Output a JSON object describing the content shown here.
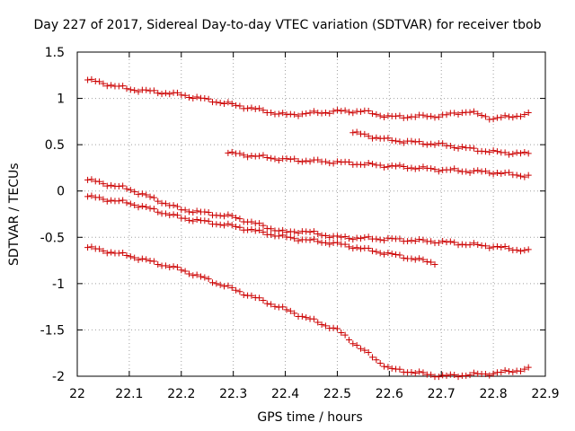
{
  "chart_data": {
    "type": "scatter",
    "title": "Day 227 of 2017, Sidereal Day-to-day VTEC variation (SDTVAR) for receiver tbob",
    "xlabel": "GPS time / hours",
    "ylabel": "SDTVAR / TECUs",
    "xlim": [
      22,
      22.9
    ],
    "ylim": [
      -2,
      1.5
    ],
    "x_ticks": [
      "22",
      "22.1",
      "22.2",
      "22.3",
      "22.4",
      "22.5",
      "22.6",
      "22.7",
      "22.8",
      "22.9"
    ],
    "y_ticks": [
      "1.5",
      "1",
      "0.5",
      "0",
      "-0.5",
      "-1",
      "-1.5",
      "-2"
    ],
    "grid": true,
    "marker": "+",
    "color": "#cc0000",
    "series": [
      {
        "name": "trace-1",
        "x": [
          22.02,
          22.1,
          22.2,
          22.3,
          22.4,
          22.5,
          22.55,
          22.6,
          22.7,
          22.75,
          22.8,
          22.87
        ],
        "y": [
          1.2,
          1.1,
          1.04,
          0.93,
          0.82,
          0.86,
          0.86,
          0.8,
          0.81,
          0.86,
          0.78,
          0.83
        ]
      },
      {
        "name": "trace-2",
        "x": [
          22.53,
          22.6,
          22.7,
          22.8,
          22.87
        ],
        "y": [
          0.63,
          0.55,
          0.5,
          0.42,
          0.4
        ]
      },
      {
        "name": "trace-3",
        "x": [
          22.29,
          22.4,
          22.5,
          22.6,
          22.7,
          22.8,
          22.87
        ],
        "y": [
          0.41,
          0.34,
          0.31,
          0.27,
          0.23,
          0.2,
          0.16
        ]
      },
      {
        "name": "trace-4",
        "x": [
          22.02,
          22.1,
          22.2,
          22.3,
          22.4,
          22.43,
          22.5,
          22.6,
          22.7,
          22.8,
          22.87
        ],
        "y": [
          0.12,
          0.02,
          -0.2,
          -0.28,
          -0.45,
          -0.43,
          -0.5,
          -0.52,
          -0.55,
          -0.6,
          -0.65
        ]
      },
      {
        "name": "trace-5",
        "x": [
          22.02,
          22.1,
          22.2,
          22.3,
          22.4,
          22.5,
          22.6,
          22.69
        ],
        "y": [
          -0.06,
          -0.13,
          -0.29,
          -0.38,
          -0.5,
          -0.57,
          -0.68,
          -0.78
        ]
      },
      {
        "name": "trace-6",
        "x": [
          22.02,
          22.1,
          22.2,
          22.3,
          22.4,
          22.5,
          22.55,
          22.6,
          22.7,
          22.8,
          22.87
        ],
        "y": [
          -0.61,
          -0.7,
          -0.85,
          -1.06,
          -1.28,
          -1.5,
          -1.72,
          -1.92,
          -2.0,
          -1.97,
          -1.92
        ]
      }
    ]
  }
}
